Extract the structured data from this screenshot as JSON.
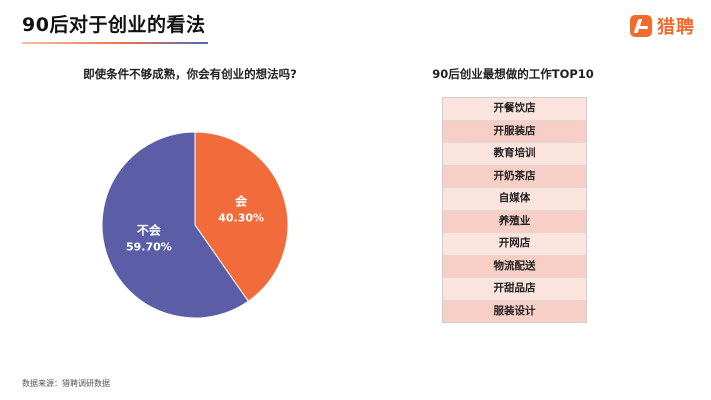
{
  "header": {
    "title": "90后对于创业的看法",
    "logo_text": "猎聘"
  },
  "chart_data": [
    {
      "type": "pie",
      "title": "即使条件不够成熟，你会有创业的想法吗?",
      "slices": [
        {
          "label": "会",
          "value": 40.3,
          "value_label": "40.30%",
          "color": "#f26b3a"
        },
        {
          "label": "不会",
          "value": 59.7,
          "value_label": "59.70%",
          "color": "#5b5ea6"
        }
      ]
    },
    {
      "type": "table",
      "title": "90后创业最想做的工作TOP10",
      "rows": [
        "开餐饮店",
        "开服装店",
        "教育培训",
        "开奶茶店",
        "自媒体",
        "养殖业",
        "开网店",
        "物流配送",
        "开甜品店",
        "服装设计"
      ]
    }
  ],
  "footer": {
    "source": "数据来源：猎聘调研数据"
  },
  "colors": {
    "accent": "#f26a2c",
    "slice_yes": "#f26b3a",
    "slice_no": "#5b5ea6",
    "row_light": "#fbe4de",
    "row_dark": "#f7cfc6"
  }
}
